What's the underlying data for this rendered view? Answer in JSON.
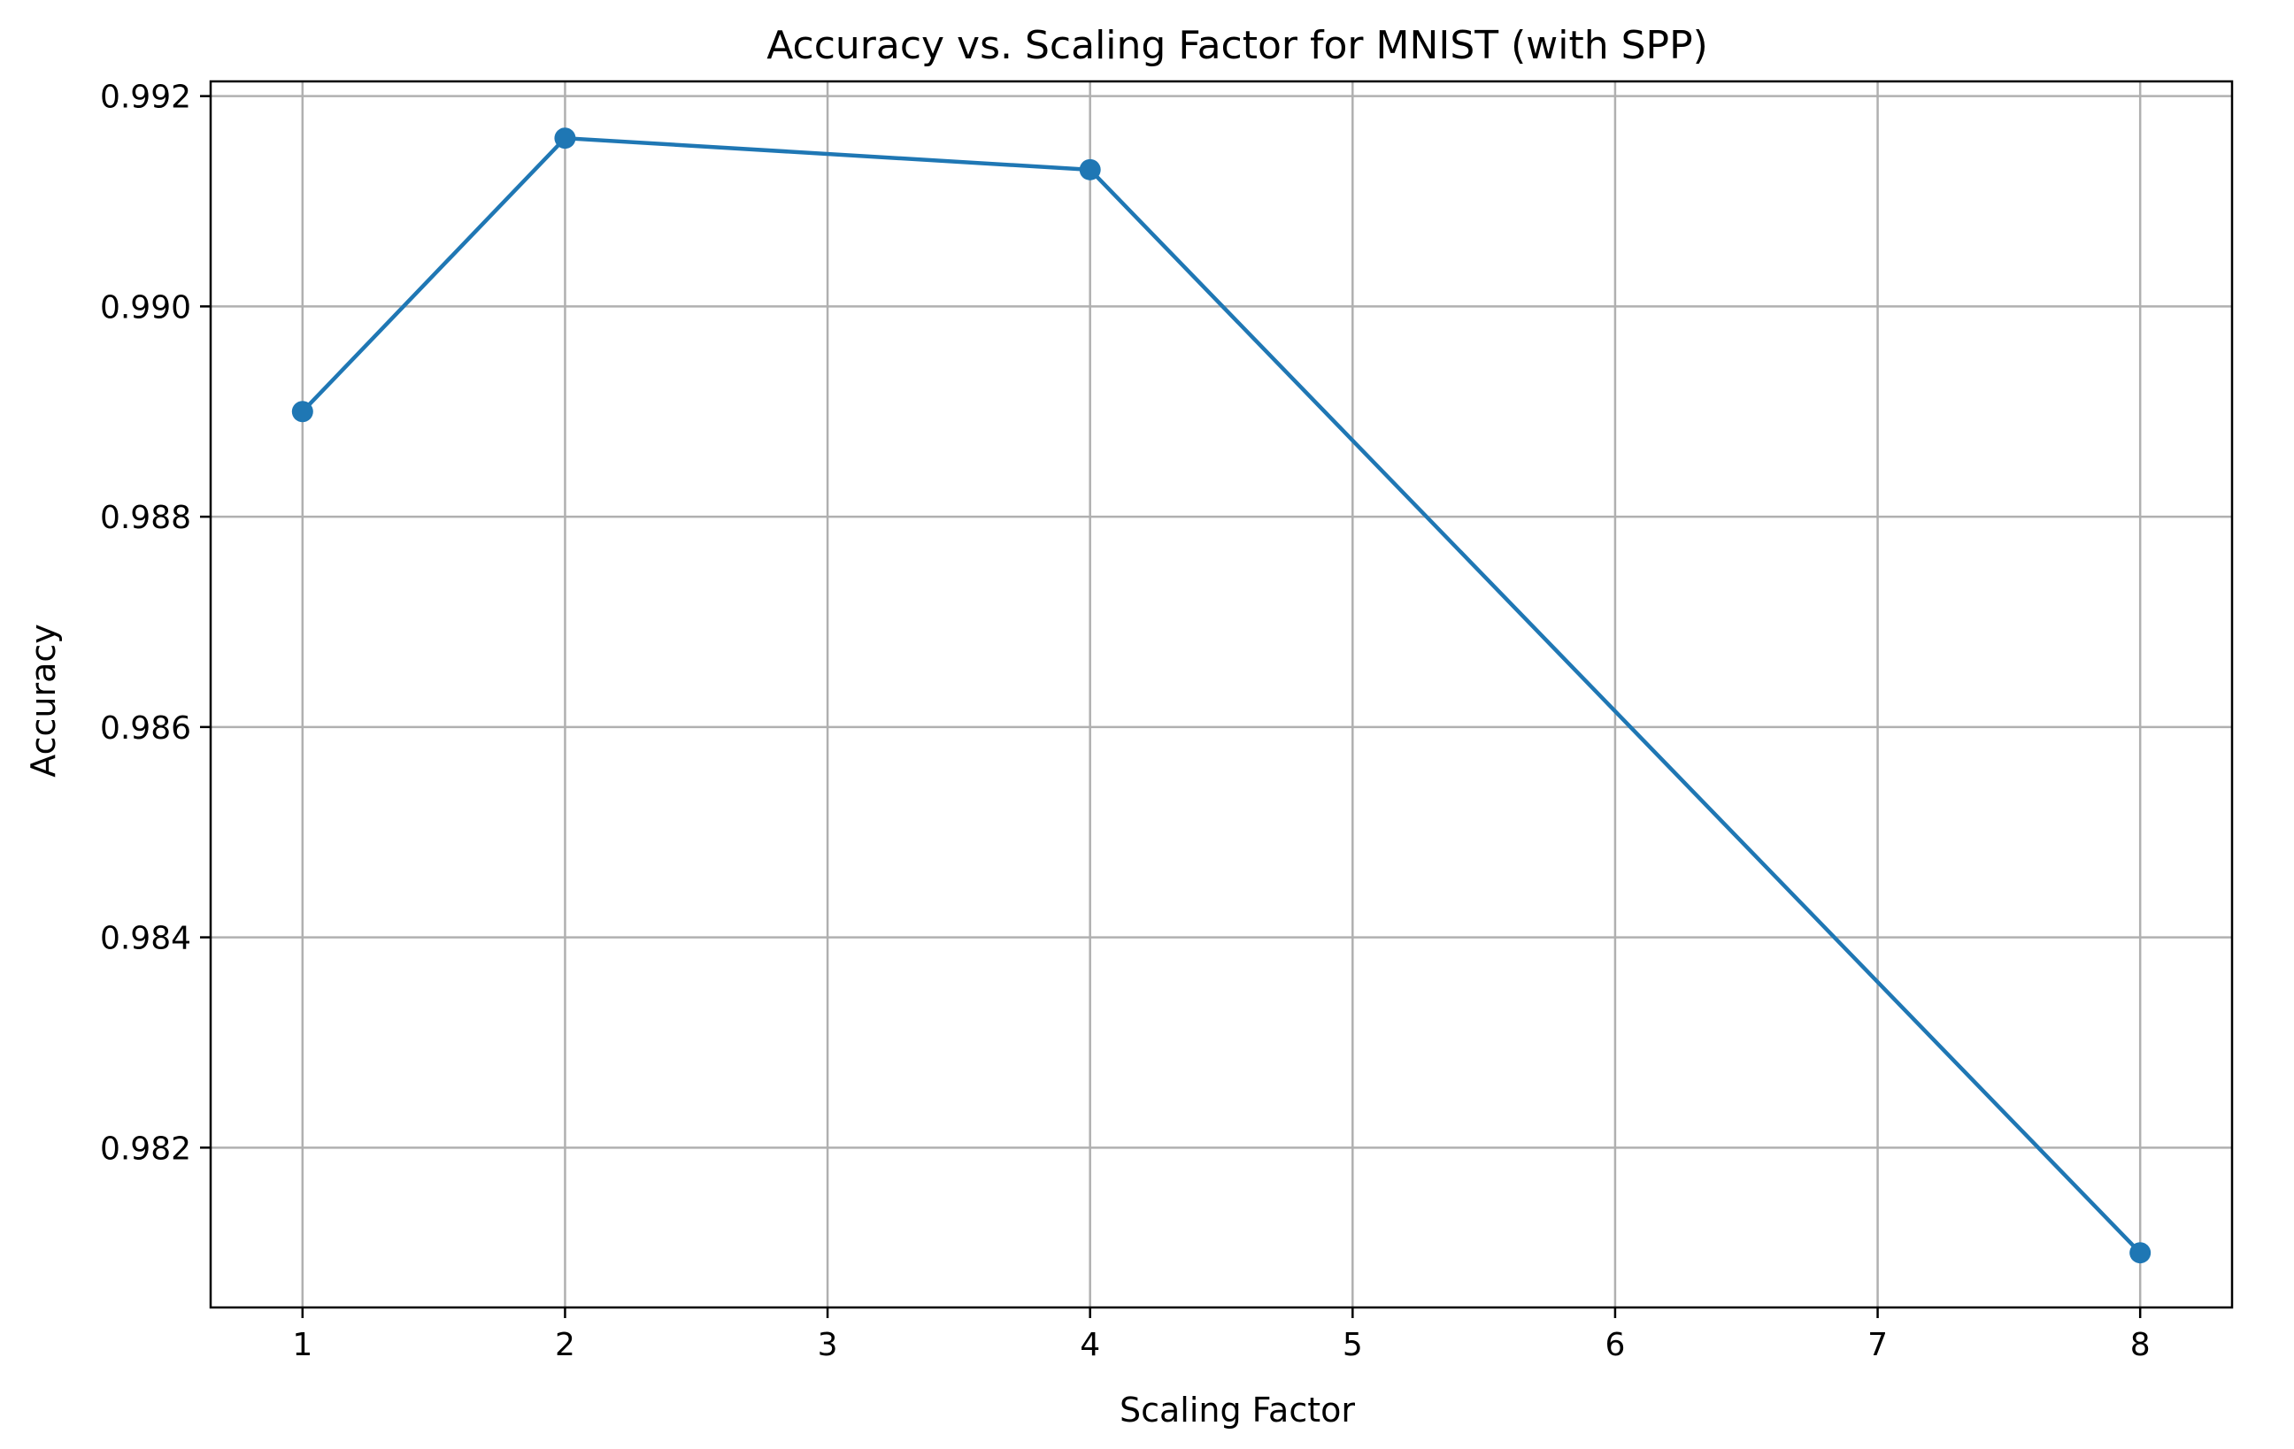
{
  "chart_data": {
    "type": "line",
    "title": "Accuracy vs. Scaling Factor for MNIST (with SPP)",
    "xlabel": "Scaling Factor",
    "ylabel": "Accuracy",
    "x_ticks": [
      1,
      2,
      3,
      4,
      5,
      6,
      7,
      8
    ],
    "y_ticks": [
      "0.982",
      "0.984",
      "0.986",
      "0.988",
      "0.990",
      "0.992"
    ],
    "xlim": [
      0.65,
      8.35
    ],
    "ylim": [
      0.98048,
      0.99214
    ],
    "grid": true,
    "legend": "none",
    "series": [
      {
        "x": [
          1,
          2,
          4,
          8
        ],
        "values": [
          0.989,
          0.9916,
          0.9913,
          0.981
        ],
        "color": "#1f77b4",
        "marker": "circle"
      }
    ]
  }
}
